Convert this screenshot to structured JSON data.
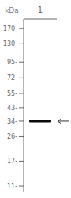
{
  "chart_data": {
    "type": "band",
    "categories": [
      "1"
    ],
    "values": [
      34
    ],
    "color": "#0a0a0a",
    "log": "y",
    "ylim": [
      10,
      200
    ],
    "yticks": [
      {
        "value": 170,
        "label": "170-"
      },
      {
        "value": 130,
        "label": "130-"
      },
      {
        "value": 95,
        "label": "95-"
      },
      {
        "value": 72,
        "label": "72-"
      },
      {
        "value": 55,
        "label": "55-"
      },
      {
        "value": 43,
        "label": "43-"
      },
      {
        "value": 34,
        "label": "34-"
      },
      {
        "value": 26,
        "label": "26-"
      },
      {
        "value": 17,
        "label": "17-"
      },
      {
        "value": 11,
        "label": "11-"
      }
    ],
    "y_label": "kDa"
  }
}
